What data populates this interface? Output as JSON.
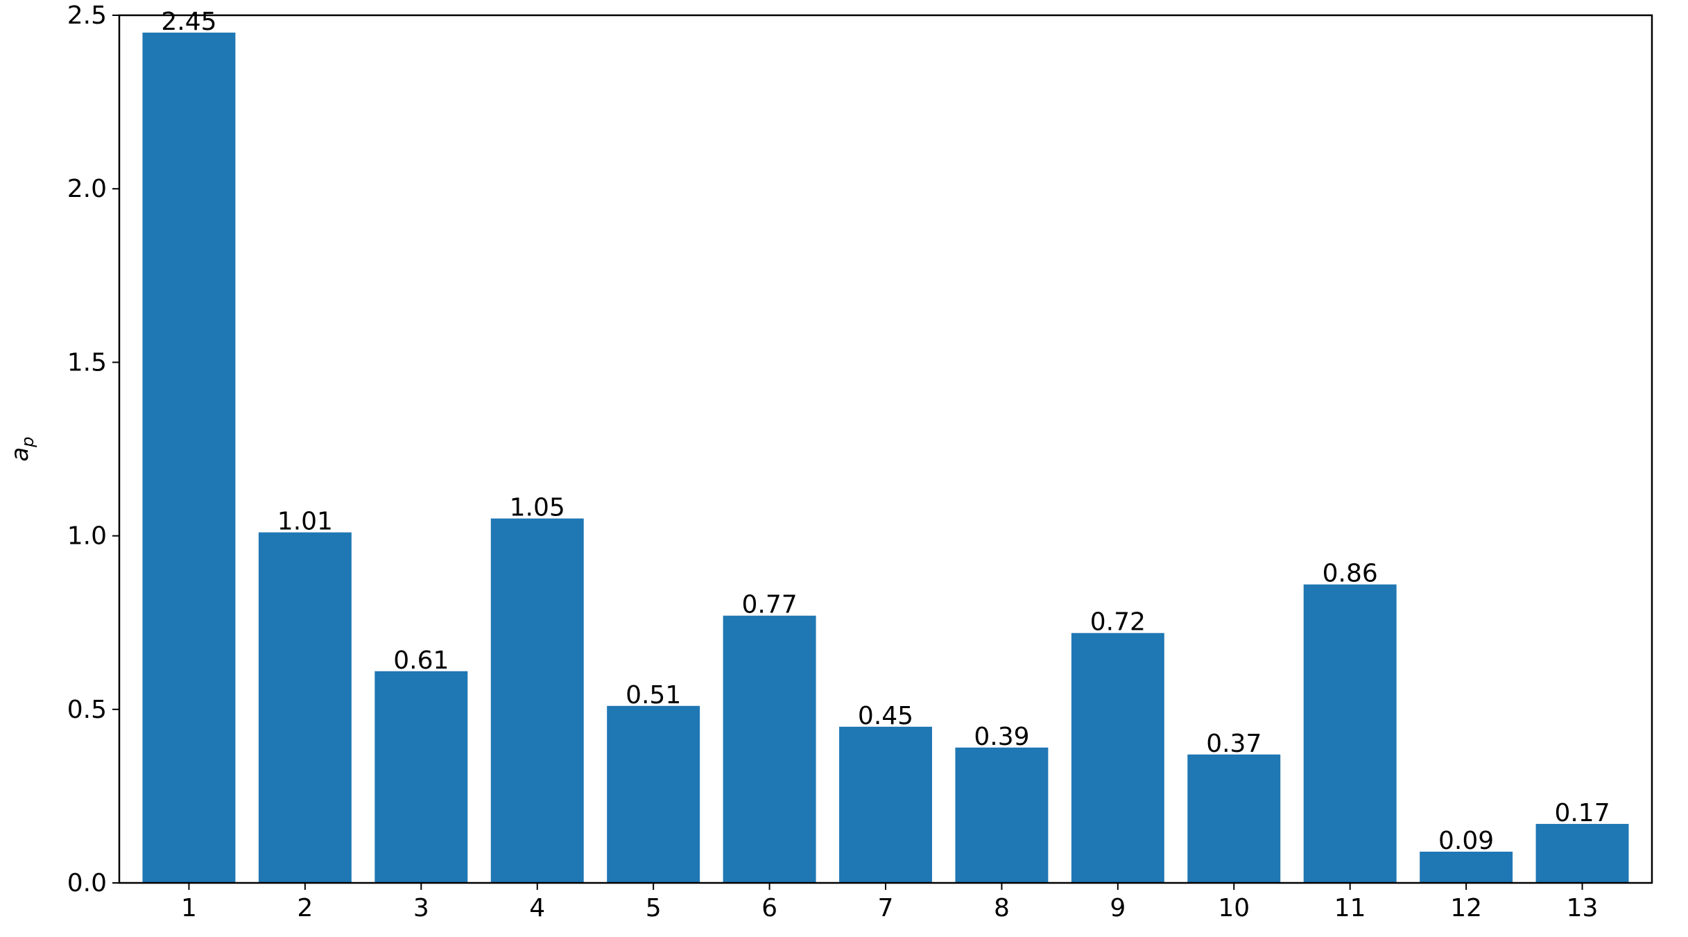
{
  "chart_data": {
    "type": "bar",
    "categories": [
      "1",
      "2",
      "3",
      "4",
      "5",
      "6",
      "7",
      "8",
      "9",
      "10",
      "11",
      "12",
      "13"
    ],
    "values": [
      2.45,
      1.01,
      0.61,
      1.05,
      0.51,
      0.77,
      0.45,
      0.39,
      0.72,
      0.37,
      0.86,
      0.09,
      0.17
    ],
    "value_labels": [
      "2.45",
      "1.01",
      "0.61",
      "1.05",
      "0.51",
      "0.77",
      "0.45",
      "0.39",
      "0.72",
      "0.37",
      "0.86",
      "0.09",
      "0.17"
    ],
    "title": "",
    "xlabel": "",
    "ylabel": "a",
    "ylabel_subscript": "p",
    "ylim": [
      0,
      2.5
    ],
    "xlim": [
      0.4,
      13.6
    ],
    "yticks": [
      0.0,
      0.5,
      1.0,
      1.5,
      2.0,
      2.5
    ],
    "ytick_labels": [
      "0.0",
      "0.5",
      "1.0",
      "1.5",
      "2.0",
      "2.5"
    ],
    "grid": false,
    "legend": "none",
    "bar_color": "#1f77b4"
  }
}
